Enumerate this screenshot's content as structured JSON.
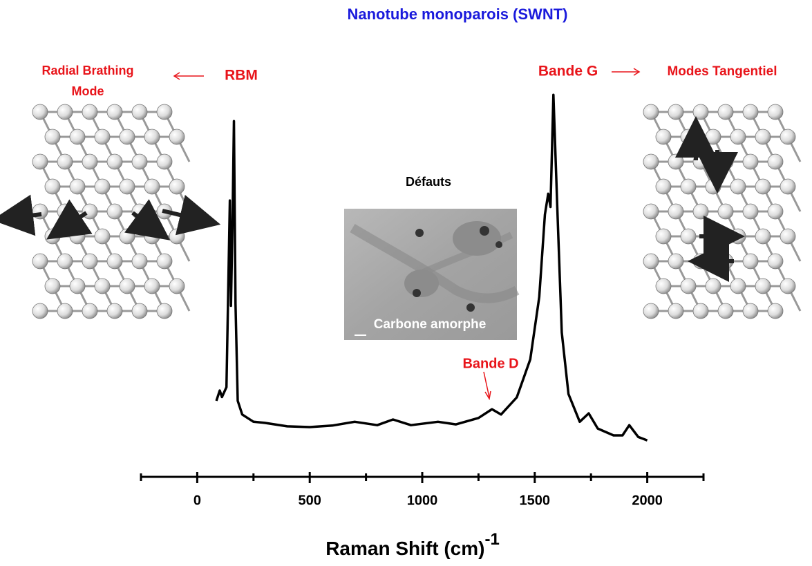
{
  "chart_data": {
    "type": "line",
    "title": "Nanotube monoparois (SWNT)",
    "x_label": "Raman Shift (cm)",
    "x_label_superscript": "-1",
    "x": [
      85,
      100,
      110,
      130,
      145,
      150,
      158,
      163,
      170,
      180,
      200,
      250,
      300,
      400,
      500,
      600,
      700,
      800,
      870,
      950,
      1070,
      1150,
      1250,
      1310,
      1350,
      1420,
      1480,
      1520,
      1545,
      1560,
      1570,
      1583,
      1600,
      1620,
      1650,
      1700,
      1740,
      1780,
      1850,
      1890,
      1920,
      1960,
      2000
    ],
    "series": [
      {
        "color": "#000000",
        "values": [
          20,
          22.7,
          21,
          23.6,
          72.7,
          45,
          71,
          93.6,
          45.5,
          20,
          16.4,
          14.5,
          14.2,
          13.3,
          13.1,
          13.5,
          14.5,
          13.6,
          15.1,
          13.6,
          14.5,
          13.8,
          15.5,
          17.8,
          16.4,
          20.9,
          30.9,
          47.3,
          69,
          74.5,
          71,
          100.5,
          71,
          38,
          21.8,
          14.5,
          16.7,
          12.7,
          10.9,
          10.9,
          13.6,
          10.5,
          9.6
        ]
      }
    ],
    "xlim": [
      -250,
      2250
    ],
    "xticks": [
      0,
      500,
      1000,
      1500,
      2000
    ],
    "minor_xticks": [
      -250,
      250,
      750,
      1250,
      1750,
      2250
    ],
    "ylim": [
      0,
      102
    ],
    "annotations": [
      "Radial Brathing",
      "Mode",
      "RBM",
      "Bande G",
      "Modes Tangentiel",
      "Défauts",
      "Carbone amorphe",
      "Bande D"
    ]
  }
}
